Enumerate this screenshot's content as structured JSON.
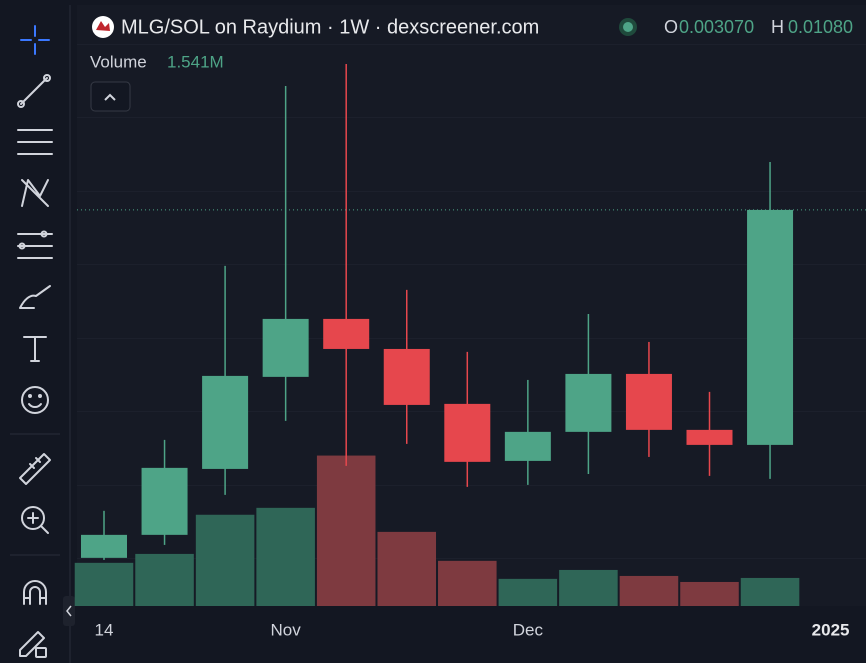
{
  "chart_data": {
    "type": "candlestick",
    "title": "MLG/SOL on Raydium · 1W · dexscreener.com",
    "legend": {
      "open_key": "O",
      "open_label": "0.003070",
      "high_key": "H",
      "high_label": "0.01080"
    },
    "categories": [
      "14",
      null,
      null,
      "Nov",
      null,
      null,
      null,
      "Dec",
      null,
      null,
      null,
      null
    ],
    "x_end_label": "2025",
    "open": [
      0.001858,
      0.002058,
      0.002759,
      0.004154,
      0.005375,
      0.004703,
      0.003684,
      0.002859,
      0.003253,
      0.004209,
      0.003282,
      0.00307
    ],
    "high": [
      0.00229,
      0.003139,
      0.006803,
      0.01514,
      0.01669,
      0.006115,
      0.004642,
      0.004098,
      0.005495,
      0.004852,
      0.003886,
      0.0108
    ],
    "low": [
      0.001841,
      0.001968,
      0.002458,
      0.003416,
      0.002797,
      0.003084,
      0.002547,
      0.00257,
      0.002698,
      0.00291,
      0.002675,
      0.002639
    ],
    "close": [
      0.002058,
      0.002772,
      0.004172,
      0.005375,
      0.004703,
      0.003667,
      0.002847,
      0.003253,
      0.004209,
      0.003282,
      0.00307,
      0.008726
    ],
    "ylim": [
      0.0015,
      0.0217
    ],
    "log_scale": true,
    "up_color": "#4ea487",
    "down_color": "#e6474d",
    "volume": {
      "name": "Volume",
      "values": [
        2370000,
        2860000,
        5010000,
        5390000,
        8260000,
        4070000,
        2480000,
        1490000,
        1980000,
        1650000,
        1320000,
        1541000
      ],
      "last_label": "1.541M",
      "ylim": [
        0,
        33000000
      ],
      "up_color": "#2f6657",
      "down_color": "#7e3a40"
    }
  }
}
